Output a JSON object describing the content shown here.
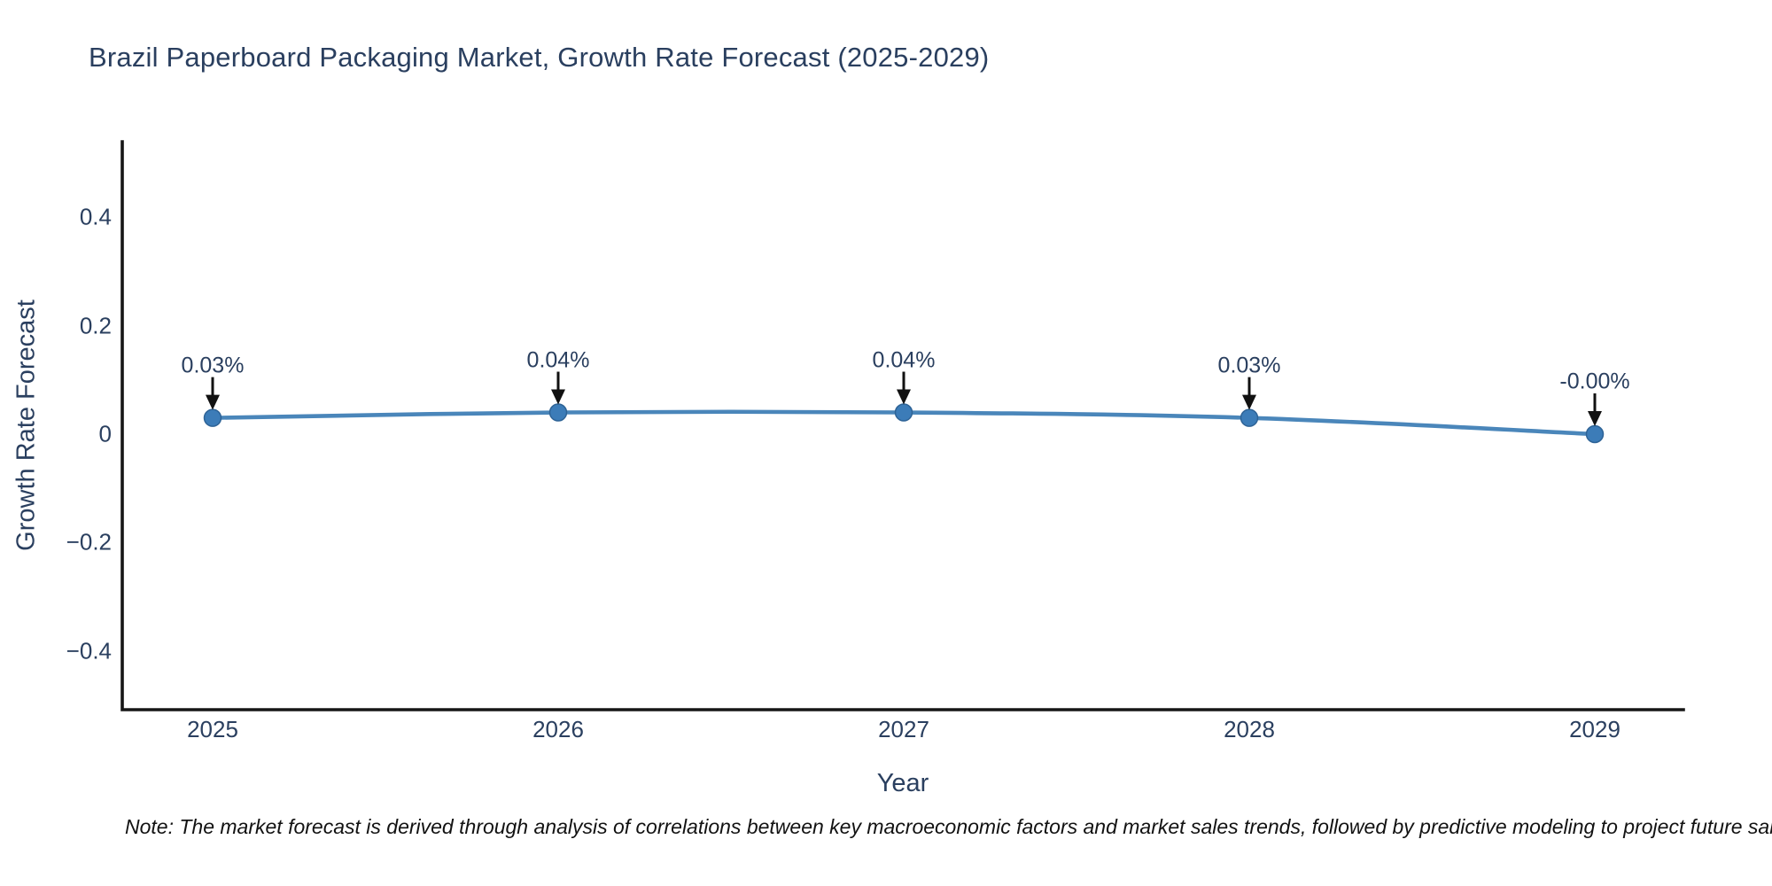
{
  "title": "Brazil Paperboard Packaging Market, Growth Rate Forecast (2025-2029)",
  "note": "Note: The market forecast is derived through analysis of correlations between key macroeconomic factors and market sales trends, followed by predictive modeling to project future sales.",
  "colors": {
    "line": "#4a86ba",
    "marker_fill": "#3c7cb8",
    "marker_edge": "#2e6396",
    "axis": "#161616",
    "arrow": "#111111",
    "text": "#2a3f5f",
    "background": "#ffffff"
  },
  "chart_data": {
    "type": "line",
    "title": "Brazil Paperboard Packaging Market, Growth Rate Forecast (2025-2029)",
    "xlabel": "Year",
    "ylabel": "Growth Rate Forecast",
    "categories": [
      "2025",
      "2026",
      "2027",
      "2028",
      "2029"
    ],
    "series": [
      {
        "name": "Growth Rate Forecast",
        "values": [
          0.03,
          0.04,
          0.04,
          0.03,
          -0.0
        ],
        "point_labels": [
          "0.03%",
          "0.04%",
          "0.04%",
          "0.03%",
          "-0.00%"
        ]
      }
    ],
    "ytick_values": [
      0.4,
      0.2,
      0,
      -0.2,
      -0.4
    ],
    "ytick_labels": [
      "0.4",
      "0.2",
      "0",
      "−0.2",
      "−0.4"
    ],
    "ylim": [
      -0.51,
      0.54
    ],
    "grid": false,
    "legend_position": "none",
    "line_shape": "spline",
    "annotation_arrows": true
  }
}
